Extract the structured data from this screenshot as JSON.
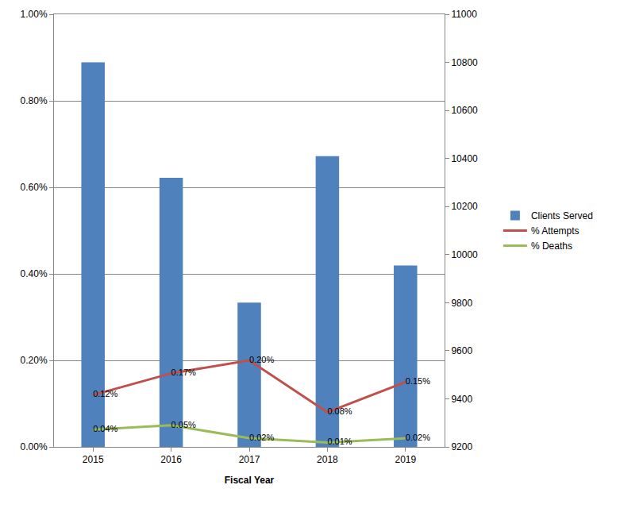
{
  "chart_data": {
    "type": "bar",
    "x_label": "Fiscal Year",
    "categories": [
      "2015",
      "2016",
      "2017",
      "2018",
      "2019"
    ],
    "series": [
      {
        "name": "Clients Served",
        "type": "bar",
        "color": "#4f81bd",
        "axis": "y2",
        "values": [
          10800,
          10320,
          9800,
          10410,
          9955
        ]
      },
      {
        "name": "% Attempts",
        "type": "line",
        "color": "#c0504d",
        "values": [
          0.12,
          0.17,
          0.2,
          0.08,
          0.15
        ],
        "value_labels": [
          "0.12%",
          "0.17%",
          "0.20%",
          "0.08%",
          "0.15%"
        ]
      },
      {
        "name": "% Deaths",
        "type": "line",
        "color": "#9bbb59",
        "values": [
          0.04,
          0.05,
          0.02,
          0.01,
          0.02
        ],
        "value_labels": [
          "0.04%",
          "0.05%",
          "0.02%",
          "0.01%",
          "0.02%"
        ]
      }
    ],
    "ylim": [
      0,
      1
    ],
    "yticks": [
      {
        "value": 0,
        "label": "0.00%"
      },
      {
        "value": 0.2,
        "label": "0.20%"
      },
      {
        "value": 0.4,
        "label": "0.40%"
      },
      {
        "value": 0.6,
        "label": "0.60%"
      },
      {
        "value": 0.8,
        "label": "0.80%"
      },
      {
        "value": 1,
        "label": "1.00%"
      }
    ],
    "y2lim": [
      9200,
      11000
    ],
    "y2ticks": [
      9200,
      9400,
      9600,
      9800,
      10000,
      10200,
      10400,
      10600,
      10800,
      11000
    ],
    "grid": true,
    "legend": "right",
    "data_labels": true
  }
}
